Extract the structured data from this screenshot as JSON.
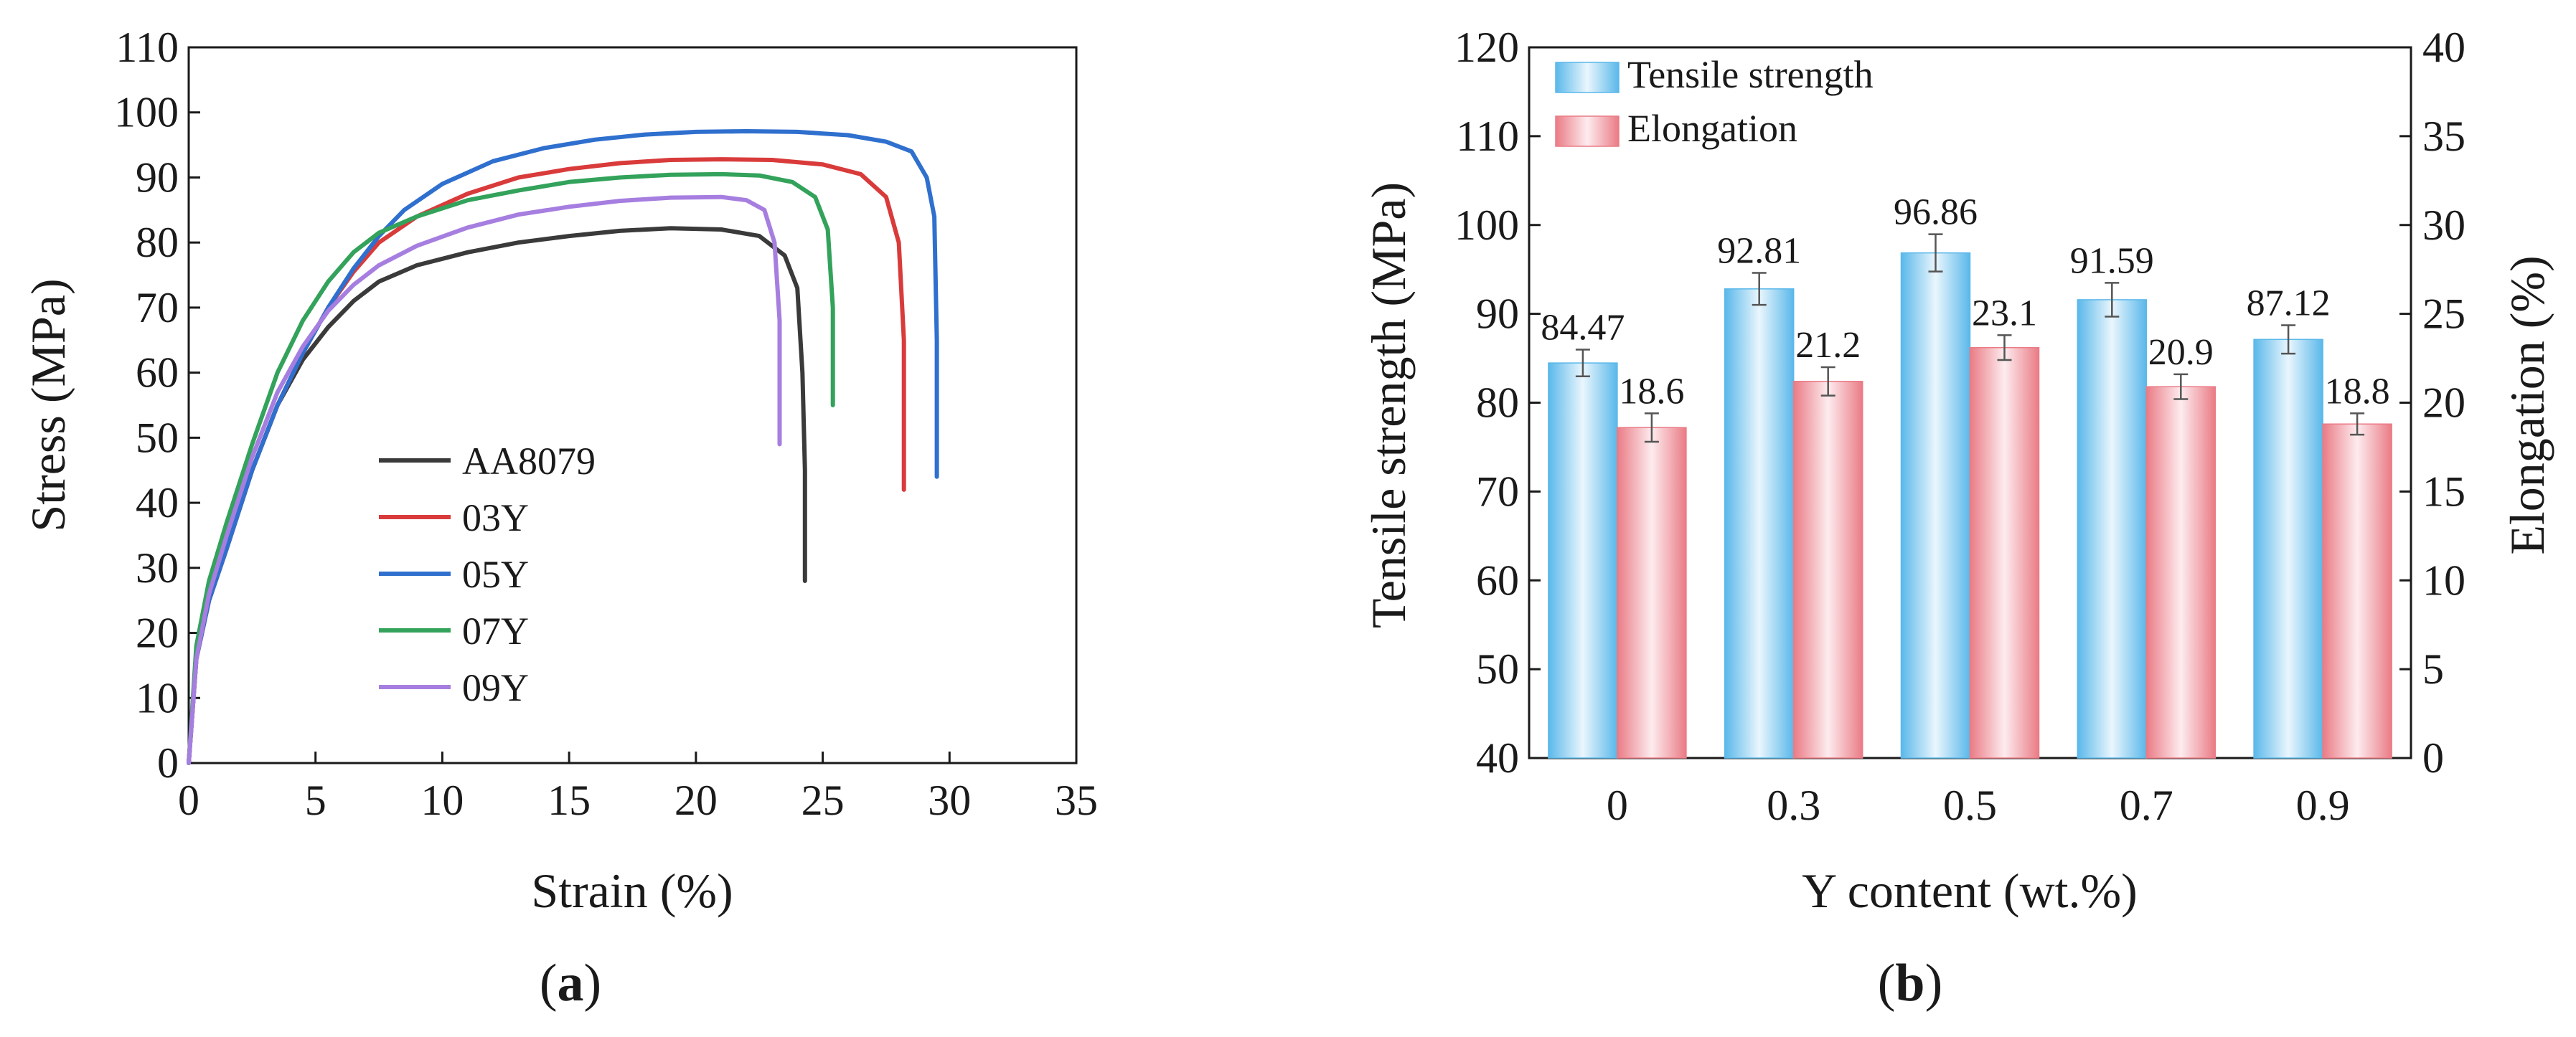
{
  "chart_data": [
    {
      "type": "line",
      "panel_label": "a",
      "xlabel": "Strain (%)",
      "ylabel": "Stress (MPa)",
      "xlim": [
        0,
        35
      ],
      "ylim": [
        0,
        110
      ],
      "xticks": [
        0,
        5,
        10,
        15,
        20,
        25,
        30,
        35
      ],
      "yticks": [
        0,
        10,
        20,
        30,
        40,
        50,
        60,
        70,
        80,
        90,
        100,
        110
      ],
      "grid": false,
      "legend_position": "lower-center",
      "series": [
        {
          "name": "AA8079",
          "color": "#3a3a3a",
          "points": [
            [
              0,
              0
            ],
            [
              0.3,
              16
            ],
            [
              0.8,
              25
            ],
            [
              1.5,
              33
            ],
            [
              2.5,
              45
            ],
            [
              3.5,
              55
            ],
            [
              4.5,
              62
            ],
            [
              5.5,
              67
            ],
            [
              6.5,
              71
            ],
            [
              7.5,
              74
            ],
            [
              9,
              76.5
            ],
            [
              11,
              78.5
            ],
            [
              13,
              80
            ],
            [
              15,
              81
            ],
            [
              17,
              81.8
            ],
            [
              19,
              82.2
            ],
            [
              21,
              82
            ],
            [
              22.5,
              81
            ],
            [
              23.5,
              78
            ],
            [
              24,
              73
            ],
            [
              24.2,
              60
            ],
            [
              24.3,
              45
            ],
            [
              24.3,
              28
            ]
          ]
        },
        {
          "name": "03Y",
          "color": "#d93b3b",
          "points": [
            [
              0,
              0
            ],
            [
              0.3,
              16
            ],
            [
              0.8,
              25
            ],
            [
              1.5,
              33
            ],
            [
              2.5,
              45
            ],
            [
              3.5,
              55
            ],
            [
              4.5,
              63
            ],
            [
              5.5,
              70
            ],
            [
              6.5,
              75.5
            ],
            [
              7.5,
              80
            ],
            [
              9,
              84
            ],
            [
              11,
              87.5
            ],
            [
              13,
              90
            ],
            [
              15,
              91.3
            ],
            [
              17,
              92.2
            ],
            [
              19,
              92.7
            ],
            [
              21,
              92.8
            ],
            [
              23,
              92.7
            ],
            [
              25,
              92
            ],
            [
              26.5,
              90.5
            ],
            [
              27.5,
              87
            ],
            [
              28,
              80
            ],
            [
              28.2,
              65
            ],
            [
              28.2,
              42
            ]
          ]
        },
        {
          "name": "05Y",
          "color": "#2f6fce",
          "points": [
            [
              0,
              0
            ],
            [
              0.3,
              16
            ],
            [
              0.8,
              25
            ],
            [
              1.5,
              33
            ],
            [
              2.5,
              45
            ],
            [
              3.5,
              55
            ],
            [
              4.5,
              63
            ],
            [
              5.5,
              70
            ],
            [
              6.5,
              76
            ],
            [
              7.5,
              81
            ],
            [
              8.5,
              85
            ],
            [
              10,
              89
            ],
            [
              12,
              92.5
            ],
            [
              14,
              94.5
            ],
            [
              16,
              95.8
            ],
            [
              18,
              96.6
            ],
            [
              20,
              97
            ],
            [
              22,
              97.1
            ],
            [
              24,
              97
            ],
            [
              26,
              96.5
            ],
            [
              27.5,
              95.5
            ],
            [
              28.5,
              94
            ],
            [
              29.1,
              90
            ],
            [
              29.4,
              84
            ],
            [
              29.5,
              65
            ],
            [
              29.5,
              44
            ]
          ]
        },
        {
          "name": "07Y",
          "color": "#33a25b",
          "points": [
            [
              0,
              0
            ],
            [
              0.3,
              18
            ],
            [
              0.8,
              28
            ],
            [
              1.5,
              37
            ],
            [
              2.5,
              49
            ],
            [
              3.5,
              60
            ],
            [
              4.5,
              68
            ],
            [
              5.5,
              74
            ],
            [
              6.5,
              78.5
            ],
            [
              7.5,
              81.5
            ],
            [
              9,
              84
            ],
            [
              11,
              86.5
            ],
            [
              13,
              88
            ],
            [
              15,
              89.3
            ],
            [
              17,
              90
            ],
            [
              19,
              90.4
            ],
            [
              21,
              90.5
            ],
            [
              22.5,
              90.3
            ],
            [
              23.8,
              89.3
            ],
            [
              24.7,
              87
            ],
            [
              25.2,
              82
            ],
            [
              25.4,
              70
            ],
            [
              25.4,
              55
            ]
          ]
        },
        {
          "name": "09Y",
          "color": "#a67ee0",
          "points": [
            [
              0,
              0
            ],
            [
              0.3,
              16
            ],
            [
              0.8,
              26
            ],
            [
              1.5,
              35
            ],
            [
              2.5,
              47
            ],
            [
              3.5,
              57
            ],
            [
              4.5,
              64
            ],
            [
              5.5,
              69.5
            ],
            [
              6.5,
              73.5
            ],
            [
              7.5,
              76.5
            ],
            [
              9,
              79.5
            ],
            [
              11,
              82.3
            ],
            [
              13,
              84.3
            ],
            [
              15,
              85.5
            ],
            [
              17,
              86.4
            ],
            [
              19,
              86.9
            ],
            [
              21,
              87
            ],
            [
              22,
              86.5
            ],
            [
              22.7,
              85
            ],
            [
              23.1,
              80
            ],
            [
              23.3,
              68
            ],
            [
              23.3,
              49
            ]
          ]
        }
      ]
    },
    {
      "type": "bar",
      "panel_label": "b",
      "xlabel": "Y content (wt.%)",
      "ylabel": "Tensile strength (MPa)",
      "ylabel_right": "Elongation (%)",
      "categories": [
        "0",
        "0.3",
        "0.5",
        "0.7",
        "0.9"
      ],
      "ylim": [
        40,
        120
      ],
      "ylim_right": [
        0,
        40
      ],
      "yticks": [
        40,
        50,
        60,
        70,
        80,
        90,
        100,
        110,
        120
      ],
      "yticks_right": [
        0,
        5,
        10,
        15,
        20,
        25,
        30,
        35,
        40
      ],
      "legend_position": "top-left",
      "series": [
        {
          "name": "Tensile strength",
          "axis": "left",
          "color": "#5ab8ea",
          "values": [
            84.47,
            92.81,
            96.86,
            91.59,
            87.12
          ],
          "labels": [
            "84.47",
            "92.81",
            "96.86",
            "91.59",
            "87.12"
          ],
          "errors": [
            1.5,
            1.8,
            2.1,
            1.9,
            1.6
          ]
        },
        {
          "name": "Elongation",
          "axis": "right",
          "color": "#ea7b85",
          "values": [
            18.6,
            21.2,
            23.1,
            20.9,
            18.8
          ],
          "labels": [
            "18.6",
            "21.2",
            "23.1",
            "20.9",
            "18.8"
          ],
          "errors": [
            0.8,
            0.8,
            0.7,
            0.7,
            0.6
          ]
        }
      ]
    }
  ]
}
